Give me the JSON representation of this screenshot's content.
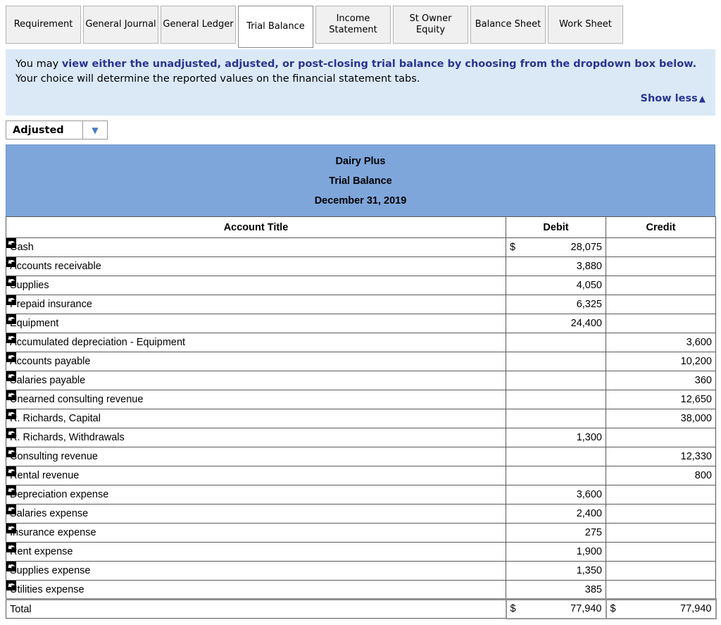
{
  "tabs": {
    "items": [
      {
        "label": "Requirement"
      },
      {
        "label": "General Journal"
      },
      {
        "label": "General Ledger"
      },
      {
        "label": "Trial Balance"
      },
      {
        "label": "Income Statement"
      },
      {
        "label": "St Owner Equity"
      },
      {
        "label": "Balance Sheet"
      },
      {
        "label": "Work Sheet"
      }
    ],
    "active": "Trial Balance"
  },
  "instructions": {
    "prefix": "You may ",
    "bold": "view either the unadjusted, adjusted, or post-closing trial balance by choosing from the dropdown box below.",
    "suffix": "  Your choice will determine the reported values on the financial statement tabs.",
    "show_less_label": "Show less",
    "show_less_icon": "▲"
  },
  "dropdown": {
    "selected": "Adjusted",
    "caret_icon": "▼"
  },
  "report": {
    "company": "Dairy Plus",
    "title": "Trial Balance",
    "date": "December 31, 2019"
  },
  "table": {
    "columns": [
      "Account Title",
      "Debit",
      "Credit"
    ],
    "rows": [
      {
        "title": "Cash",
        "debit_prefix": "$",
        "debit": "28,075",
        "credit_prefix": "",
        "credit": ""
      },
      {
        "title": "Accounts receivable",
        "debit_prefix": "",
        "debit": "3,880",
        "credit_prefix": "",
        "credit": ""
      },
      {
        "title": "Supplies",
        "debit_prefix": "",
        "debit": "4,050",
        "credit_prefix": "",
        "credit": ""
      },
      {
        "title": "Prepaid insurance",
        "debit_prefix": "",
        "debit": "6,325",
        "credit_prefix": "",
        "credit": ""
      },
      {
        "title": "Equipment",
        "debit_prefix": "",
        "debit": "24,400",
        "credit_prefix": "",
        "credit": ""
      },
      {
        "title": "Accumulated depreciation - Equipment",
        "debit_prefix": "",
        "debit": "",
        "credit_prefix": "",
        "credit": "3,600"
      },
      {
        "title": "Accounts payable",
        "debit_prefix": "",
        "debit": "",
        "credit_prefix": "",
        "credit": "10,200"
      },
      {
        "title": "Salaries payable",
        "debit_prefix": "",
        "debit": "",
        "credit_prefix": "",
        "credit": "360"
      },
      {
        "title": "Unearned consulting revenue",
        "debit_prefix": "",
        "debit": "",
        "credit_prefix": "",
        "credit": "12,650"
      },
      {
        "title": "R. Richards, Capital",
        "debit_prefix": "",
        "debit": "",
        "credit_prefix": "",
        "credit": "38,000"
      },
      {
        "title": "R. Richards, Withdrawals",
        "debit_prefix": "",
        "debit": "1,300",
        "credit_prefix": "",
        "credit": ""
      },
      {
        "title": "Consulting revenue",
        "debit_prefix": "",
        "debit": "",
        "credit_prefix": "",
        "credit": "12,330"
      },
      {
        "title": "Rental revenue",
        "debit_prefix": "",
        "debit": "",
        "credit_prefix": "",
        "credit": "800"
      },
      {
        "title": "Depreciation expense",
        "debit_prefix": "",
        "debit": "3,600",
        "credit_prefix": "",
        "credit": ""
      },
      {
        "title": "Salaries expense",
        "debit_prefix": "",
        "debit": "2,400",
        "credit_prefix": "",
        "credit": ""
      },
      {
        "title": "Insurance expense",
        "debit_prefix": "",
        "debit": "275",
        "credit_prefix": "",
        "credit": ""
      },
      {
        "title": "Rent expense",
        "debit_prefix": "",
        "debit": "1,900",
        "credit_prefix": "",
        "credit": ""
      },
      {
        "title": "Supplies expense",
        "debit_prefix": "",
        "debit": "1,350",
        "credit_prefix": "",
        "credit": ""
      },
      {
        "title": "Utilities expense",
        "debit_prefix": "",
        "debit": "385",
        "credit_prefix": "",
        "credit": ""
      }
    ],
    "total": {
      "title": "Total",
      "debit_prefix": "$",
      "debit": "77,940",
      "credit_prefix": "$",
      "credit": "77,940"
    }
  },
  "icons": {
    "row_link": "reply-arrow",
    "dropdown_caret": "▼",
    "collapse": "▲"
  },
  "colors": {
    "navy_text": "#283593",
    "info_panel_bg": "#dbe9f7",
    "report_header_bg": "#7ea6db",
    "caret_blue": "#4a7cc2"
  }
}
